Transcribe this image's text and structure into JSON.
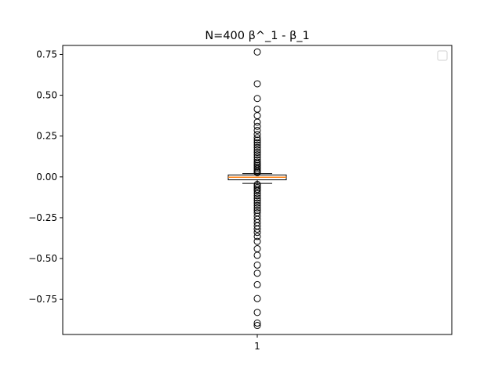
{
  "chart_data": {
    "type": "boxplot",
    "title": "N=400 β^_1 - β_1",
    "xlabel": "",
    "ylabel": "",
    "categories": [
      "1"
    ],
    "ylim": [
      -0.965,
      0.805
    ],
    "yticks": [
      -0.75,
      -0.5,
      -0.25,
      0.0,
      0.25,
      0.5,
      0.75
    ],
    "ytick_labels": [
      "−0.75",
      "−0.50",
      "−0.25",
      "0.00",
      "0.25",
      "0.50",
      "0.75"
    ],
    "grid": false,
    "legend": {
      "placement": "top-right",
      "entries": []
    },
    "box": {
      "q1": -0.018,
      "median": -0.002,
      "q3": 0.012,
      "whisker_low": -0.04,
      "whisker_high": 0.02
    },
    "outliers": [
      0.765,
      0.57,
      0.48,
      0.415,
      0.375,
      0.335,
      0.31,
      0.285,
      0.26,
      0.24,
      0.225,
      0.21,
      0.195,
      0.18,
      0.165,
      0.15,
      0.135,
      0.12,
      0.105,
      0.09,
      0.08,
      0.07,
      0.06,
      0.05,
      0.04,
      0.032,
      0.026,
      -0.046,
      -0.055,
      -0.065,
      -0.075,
      -0.085,
      -0.1,
      -0.115,
      -0.13,
      -0.145,
      -0.16,
      -0.175,
      -0.19,
      -0.205,
      -0.22,
      -0.24,
      -0.26,
      -0.28,
      -0.3,
      -0.32,
      -0.34,
      -0.365,
      -0.395,
      -0.44,
      -0.48,
      -0.54,
      -0.59,
      -0.66,
      -0.745,
      -0.83,
      -0.895,
      -0.91
    ],
    "colors": {
      "median": "#ff7f0e",
      "box": "#000000",
      "outlier": "#000000",
      "axes": "#000000"
    }
  }
}
